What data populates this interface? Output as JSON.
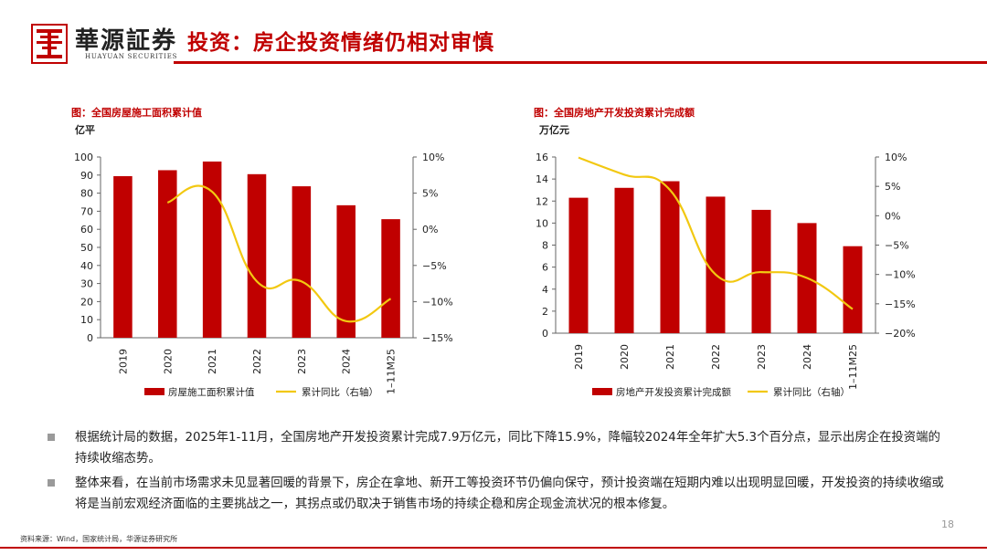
{
  "header": {
    "brand_cn": "華源証券",
    "brand_en": "HUAYUAN SECURITIES",
    "title": "投资：房企投资情绪仍相对审慎",
    "accent_color": "#c00000"
  },
  "chart_data": [
    {
      "type": "bar",
      "caption": "图：全国房屋施工面积累计值",
      "ylabel": "亿平",
      "categories": [
        "2019",
        "2020",
        "2021",
        "2022",
        "2023",
        "2024",
        "1–11M25"
      ],
      "series": [
        {
          "name": "房屋施工面积累计值",
          "type": "bar",
          "axis": "left",
          "color": "#c00000",
          "values": [
            89.4,
            92.7,
            97.5,
            90.5,
            83.8,
            73.3,
            65.6
          ]
        },
        {
          "name": "累计同比（右轴）",
          "type": "line",
          "axis": "right",
          "color": "#f2c811",
          "values": [
            null,
            3.7,
            5.2,
            -7.2,
            -7.2,
            -12.7,
            -9.6
          ]
        }
      ],
      "ylim": [
        0,
        100
      ],
      "yticks": [
        "0",
        "10",
        "20",
        "30",
        "40",
        "50",
        "60",
        "70",
        "80",
        "90",
        "100"
      ],
      "y2lim": [
        -15,
        10
      ],
      "y2ticks": [
        "−15%",
        "−10%",
        "−5%",
        "0%",
        "5%",
        "10%"
      ]
    },
    {
      "type": "bar",
      "caption": "图：全国房地产开发投资累计完成额",
      "ylabel": "万亿元",
      "categories": [
        "2019",
        "2020",
        "2021",
        "2022",
        "2023",
        "2024",
        "1–11M25"
      ],
      "series": [
        {
          "name": "房地产开发投资累计完成额",
          "type": "bar",
          "axis": "left",
          "color": "#c00000",
          "values": [
            12.3,
            13.2,
            13.8,
            12.4,
            11.2,
            10.0,
            7.9
          ]
        },
        {
          "name": "累计同比（右轴）",
          "type": "line",
          "axis": "right",
          "color": "#f2c811",
          "values": [
            9.9,
            7.0,
            4.4,
            -10.0,
            -9.6,
            -10.6,
            -15.9
          ]
        }
      ],
      "ylim": [
        0,
        16
      ],
      "yticks": [
        "0",
        "2",
        "4",
        "6",
        "8",
        "10",
        "12",
        "14",
        "16"
      ],
      "y2lim": [
        -20,
        10
      ],
      "y2ticks": [
        "−20%",
        "−15%",
        "−10%",
        "−5%",
        "0%",
        "5%",
        "10%"
      ]
    }
  ],
  "bullets": [
    "根据统计局的数据，2025年1-11月，全国房地产开发投资累计完成7.9万亿元，同比下降15.9%，降幅较2024年全年扩大5.3个百分点，显示出房企在投资端的持续收缩态势。",
    "整体来看，在当前市场需求未见显著回暖的背景下，房企在拿地、新开工等投资环节仍偏向保守，预计投资端在短期内难以出现明显回暖，开发投资的持续收缩或将是当前宏观经济面临的主要挑战之一，其拐点或仍取决于销售市场的持续企稳和房企现金流状况的根本修复。"
  ],
  "footer": {
    "page_number": "18",
    "source": "资料来源：Wind，国家统计局，华源证券研究所"
  }
}
